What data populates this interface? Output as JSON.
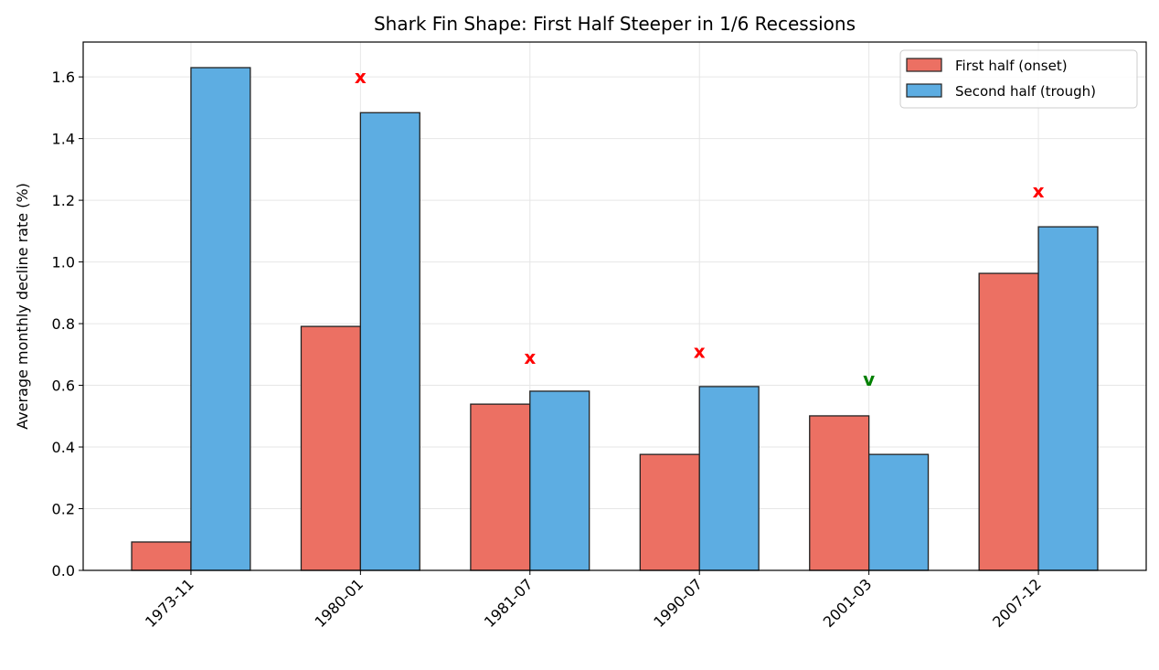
{
  "chart_data": {
    "type": "bar",
    "title": "Shark Fin Shape: First Half Steeper in 1/6 Recessions",
    "xlabel": "",
    "ylabel": "Average monthly decline rate (%)",
    "categories": [
      "1973-11",
      "1980-01",
      "1981-07",
      "1990-07",
      "2001-03",
      "2007-12"
    ],
    "series": [
      {
        "name": "First half (onset)",
        "color": "#ec7063",
        "values": [
          0.092,
          0.791,
          0.539,
          0.376,
          0.501,
          0.963
        ]
      },
      {
        "name": "Second half (trough)",
        "color": "#5dade2",
        "values": [
          1.63,
          1.484,
          0.581,
          0.596,
          0.376,
          1.114
        ]
      }
    ],
    "markers": [
      {
        "category": "1980-01",
        "symbol": "x",
        "color": "#ff0000",
        "y": 1.6
      },
      {
        "category": "1981-07",
        "symbol": "x",
        "color": "#ff0000",
        "y": 0.69
      },
      {
        "category": "1990-07",
        "symbol": "x",
        "color": "#ff0000",
        "y": 0.71
      },
      {
        "category": "2001-03",
        "symbol": "v",
        "color": "#008000",
        "y": 0.62
      },
      {
        "category": "2007-12",
        "symbol": "x",
        "color": "#ff0000",
        "y": 1.23
      }
    ],
    "ylim": [
      0,
      1.713
    ],
    "yticks": [
      "0.0",
      "0.2",
      "0.4",
      "0.6",
      "0.8",
      "1.0",
      "1.2",
      "1.4",
      "1.6"
    ],
    "grid": true,
    "legend": "top-right"
  }
}
